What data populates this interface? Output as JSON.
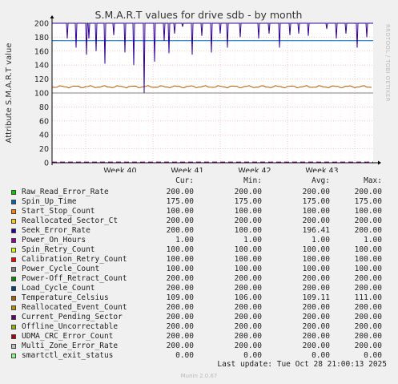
{
  "chart_data": {
    "type": "line",
    "title": "S.M.A.R.T values for drive sdb - by month",
    "ylabel": "Attribute S.M.A.R.T value",
    "ylim": [
      0,
      200
    ],
    "yticks": [
      0,
      20,
      40,
      60,
      80,
      100,
      120,
      140,
      160,
      180,
      200
    ],
    "xticks": [
      "Week 40",
      "Week 41",
      "Week 42",
      "Week 43"
    ],
    "grid": true,
    "columns": [
      "Cur:",
      "Min:",
      "Avg:",
      "Max:"
    ],
    "series": [
      {
        "name": "Raw_Read_Error_Rate",
        "color": "#00cc00",
        "cur": "200.00",
        "min": "200.00",
        "avg": "200.00",
        "max": "200.00"
      },
      {
        "name": "Spin_Up_Time",
        "color": "#0066b3",
        "cur": "175.00",
        "min": "175.00",
        "avg": "175.00",
        "max": "175.00"
      },
      {
        "name": "Start_Stop_Count",
        "color": "#ff8000",
        "cur": "100.00",
        "min": "100.00",
        "avg": "100.00",
        "max": "100.00"
      },
      {
        "name": "Reallocated_Sector_Ct",
        "color": "#ffcc00",
        "cur": "200.00",
        "min": "200.00",
        "avg": "200.00",
        "max": "200.00"
      },
      {
        "name": "Seek_Error_Rate",
        "color": "#330099",
        "cur": "200.00",
        "min": "100.00",
        "avg": "196.41",
        "max": "200.00"
      },
      {
        "name": "Power_On_Hours",
        "color": "#990099",
        "cur": "1.00",
        "min": "1.00",
        "avg": "1.00",
        "max": "1.00"
      },
      {
        "name": "Spin_Retry_Count",
        "color": "#ccff00",
        "cur": "100.00",
        "min": "100.00",
        "avg": "100.00",
        "max": "100.00"
      },
      {
        "name": "Calibration_Retry_Count",
        "color": "#ff0000",
        "cur": "100.00",
        "min": "100.00",
        "avg": "100.00",
        "max": "100.00"
      },
      {
        "name": "Power_Cycle_Count",
        "color": "#808080",
        "cur": "100.00",
        "min": "100.00",
        "avg": "100.00",
        "max": "100.00"
      },
      {
        "name": "Power-Off_Retract_Count",
        "color": "#008f00",
        "cur": "200.00",
        "min": "200.00",
        "avg": "200.00",
        "max": "200.00"
      },
      {
        "name": "Load_Cycle_Count",
        "color": "#00487d",
        "cur": "200.00",
        "min": "200.00",
        "avg": "200.00",
        "max": "200.00"
      },
      {
        "name": "Temperature_Celsius",
        "color": "#b35a00",
        "cur": "109.00",
        "min": "106.00",
        "avg": "109.11",
        "max": "111.00"
      },
      {
        "name": "Reallocated_Event_Count",
        "color": "#b38f00",
        "cur": "200.00",
        "min": "200.00",
        "avg": "200.00",
        "max": "200.00"
      },
      {
        "name": "Current_Pending_Sector",
        "color": "#6b006b",
        "cur": "200.00",
        "min": "200.00",
        "avg": "200.00",
        "max": "200.00"
      },
      {
        "name": "Offline_Uncorrectable",
        "color": "#8fb300",
        "cur": "200.00",
        "min": "200.00",
        "avg": "200.00",
        "max": "200.00"
      },
      {
        "name": "UDMA_CRC_Error_Count",
        "color": "#b30000",
        "cur": "200.00",
        "min": "200.00",
        "avg": "200.00",
        "max": "200.00"
      },
      {
        "name": "Multi_Zone_Error_Rate",
        "color": "#bebebe",
        "cur": "200.00",
        "min": "200.00",
        "avg": "200.00",
        "max": "200.00"
      },
      {
        "name": "smartctl_exit_status",
        "color": "#80ff80",
        "cur": "0.00",
        "min": "0.00",
        "avg": "0.00",
        "max": "0.00"
      }
    ]
  },
  "last_update": "Last update: Tue Oct 28 21:00:13 2025",
  "munin_version": "Munin 2.0.67",
  "rrdtool_label": "RRDTOOL / TOBI OETIKER"
}
